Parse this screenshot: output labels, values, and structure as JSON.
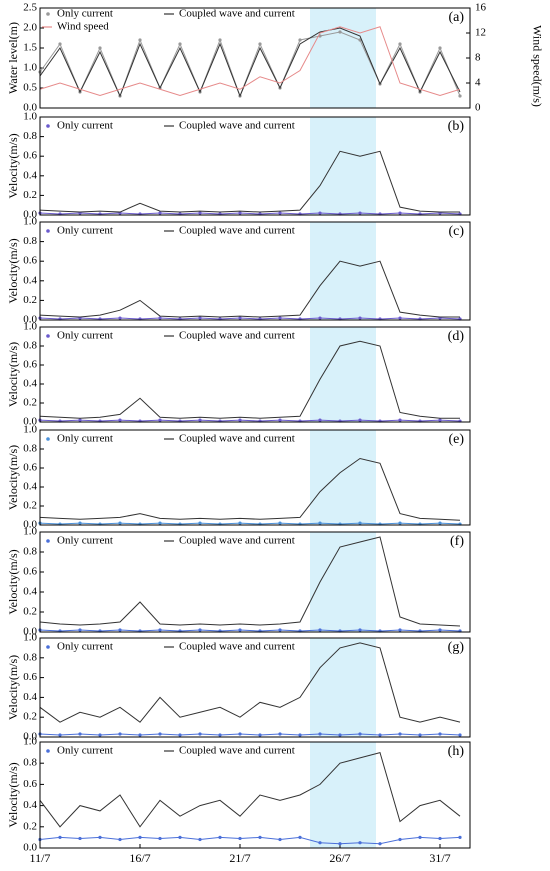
{
  "chart_data": [
    {
      "type": "line",
      "label": "(a)",
      "ylabel": "Water level(m)",
      "y2label": "Wind speed(m/s)",
      "x": [
        11,
        12,
        13,
        14,
        15,
        16,
        17,
        18,
        19,
        20,
        21,
        22,
        23,
        24,
        25,
        26,
        27,
        28,
        29,
        30,
        31,
        32
      ],
      "xlim": [
        11,
        32.5
      ],
      "ylim": [
        0,
        2.5
      ],
      "yticks": [
        {
          "value": 0,
          "label": "0.0"
        },
        {
          "value": 0.5,
          "label": "0.5"
        },
        {
          "value": 1,
          "label": "1.0"
        },
        {
          "value": 1.5,
          "label": "1.5"
        },
        {
          "value": 2,
          "label": "2.0"
        },
        {
          "value": 2.5,
          "label": "2.5"
        }
      ],
      "y2lim": [
        0,
        16
      ],
      "y2ticks": [
        0,
        4,
        8,
        12,
        16
      ],
      "shade_x": [
        24.5,
        27.8
      ],
      "series": [
        {
          "name": "Only current",
          "color": "#999999",
          "marker": true,
          "values": [
            0.9,
            1.6,
            0.4,
            1.5,
            0.3,
            1.7,
            0.5,
            1.6,
            0.4,
            1.7,
            0.3,
            1.6,
            0.5,
            1.7,
            1.8,
            1.9,
            1.7,
            0.6,
            1.6,
            0.4,
            1.5,
            0.3
          ]
        },
        {
          "name": "Coupled wave and current",
          "color": "#333333",
          "values": [
            0.8,
            1.5,
            0.4,
            1.4,
            0.3,
            1.6,
            0.5,
            1.5,
            0.4,
            1.6,
            0.3,
            1.5,
            0.5,
            1.6,
            1.9,
            2.0,
            1.8,
            0.6,
            1.5,
            0.4,
            1.4,
            0.4
          ]
        },
        {
          "name": "Wind speed",
          "color": "#e68a8a",
          "axis": "y2",
          "values": [
            3,
            4,
            3,
            2,
            3,
            4,
            3,
            2,
            3,
            4,
            3,
            5,
            4,
            6,
            12,
            13,
            12,
            13,
            4,
            3,
            2,
            3
          ]
        }
      ]
    },
    {
      "type": "line",
      "label": "(b)",
      "ylabel": "Velocity(m/s)",
      "x": [
        11,
        12,
        13,
        14,
        15,
        16,
        17,
        18,
        19,
        20,
        21,
        22,
        23,
        24,
        25,
        26,
        27,
        28,
        29,
        30,
        31,
        32
      ],
      "xlim": [
        11,
        32.5
      ],
      "ylim": [
        0,
        1
      ],
      "yticks": [
        {
          "value": 0,
          "label": "0.0"
        },
        {
          "value": 0.2,
          "label": "0.2"
        },
        {
          "value": 0.4,
          "label": "0.4"
        },
        {
          "value": 0.6,
          "label": "0.6"
        },
        {
          "value": 0.8,
          "label": "0.8"
        },
        {
          "value": 1,
          "label": "1.0"
        }
      ],
      "shade_x": [
        24.5,
        27.8
      ],
      "series": [
        {
          "name": "Only current",
          "color": "#6a5acd",
          "marker": true,
          "values": [
            0.02,
            0.01,
            0.02,
            0.01,
            0.02,
            0.01,
            0.02,
            0.01,
            0.02,
            0.01,
            0.02,
            0.01,
            0.02,
            0.01,
            0.02,
            0.01,
            0.02,
            0.01,
            0.02,
            0.01,
            0.02,
            0.01
          ]
        },
        {
          "name": "Coupled wave and current",
          "color": "#333333",
          "values": [
            0.05,
            0.04,
            0.03,
            0.04,
            0.03,
            0.12,
            0.04,
            0.03,
            0.04,
            0.03,
            0.04,
            0.03,
            0.04,
            0.05,
            0.3,
            0.65,
            0.6,
            0.65,
            0.08,
            0.04,
            0.03,
            0.03
          ]
        }
      ]
    },
    {
      "type": "line",
      "label": "(c)",
      "ylabel": "Velocity(m/s)",
      "x": [
        11,
        12,
        13,
        14,
        15,
        16,
        17,
        18,
        19,
        20,
        21,
        22,
        23,
        24,
        25,
        26,
        27,
        28,
        29,
        30,
        31,
        32
      ],
      "xlim": [
        11,
        32.5
      ],
      "ylim": [
        0,
        1
      ],
      "yticks": [
        {
          "value": 0,
          "label": "0.0"
        },
        {
          "value": 0.2,
          "label": "0.2"
        },
        {
          "value": 0.4,
          "label": "0.4"
        },
        {
          "value": 0.6,
          "label": "0.6"
        },
        {
          "value": 0.8,
          "label": "0.8"
        },
        {
          "value": 1,
          "label": "1.0"
        }
      ],
      "shade_x": [
        24.5,
        27.8
      ],
      "series": [
        {
          "name": "Only current",
          "color": "#6a5acd",
          "marker": true,
          "values": [
            0.02,
            0.01,
            0.02,
            0.01,
            0.02,
            0.01,
            0.02,
            0.01,
            0.02,
            0.01,
            0.02,
            0.01,
            0.02,
            0.01,
            0.02,
            0.01,
            0.02,
            0.01,
            0.02,
            0.01,
            0.02,
            0.01
          ]
        },
        {
          "name": "Coupled wave and current",
          "color": "#333333",
          "values": [
            0.05,
            0.04,
            0.03,
            0.05,
            0.1,
            0.2,
            0.04,
            0.03,
            0.04,
            0.03,
            0.04,
            0.03,
            0.04,
            0.05,
            0.35,
            0.6,
            0.55,
            0.6,
            0.08,
            0.05,
            0.03,
            0.03
          ]
        }
      ]
    },
    {
      "type": "line",
      "label": "(d)",
      "ylabel": "Velocity(m/s)",
      "x": [
        11,
        12,
        13,
        14,
        15,
        16,
        17,
        18,
        19,
        20,
        21,
        22,
        23,
        24,
        25,
        26,
        27,
        28,
        29,
        30,
        31,
        32
      ],
      "xlim": [
        11,
        32.5
      ],
      "ylim": [
        0,
        1
      ],
      "yticks": [
        {
          "value": 0,
          "label": "0.0"
        },
        {
          "value": 0.2,
          "label": "0.2"
        },
        {
          "value": 0.4,
          "label": "0.4"
        },
        {
          "value": 0.6,
          "label": "0.6"
        },
        {
          "value": 0.8,
          "label": "0.8"
        },
        {
          "value": 1,
          "label": "1.0"
        }
      ],
      "shade_x": [
        24.5,
        27.8
      ],
      "series": [
        {
          "name": "Only current",
          "color": "#6a5acd",
          "marker": true,
          "values": [
            0.02,
            0.01,
            0.02,
            0.01,
            0.02,
            0.01,
            0.02,
            0.01,
            0.02,
            0.01,
            0.02,
            0.01,
            0.02,
            0.01,
            0.02,
            0.01,
            0.02,
            0.01,
            0.02,
            0.01,
            0.02,
            0.01
          ]
        },
        {
          "name": "Coupled wave and current",
          "color": "#333333",
          "values": [
            0.06,
            0.05,
            0.04,
            0.05,
            0.08,
            0.25,
            0.05,
            0.04,
            0.05,
            0.04,
            0.05,
            0.04,
            0.05,
            0.06,
            0.45,
            0.8,
            0.85,
            0.8,
            0.1,
            0.06,
            0.04,
            0.04
          ]
        }
      ]
    },
    {
      "type": "line",
      "label": "(e)",
      "ylabel": "Velocity(m/s)",
      "x": [
        11,
        12,
        13,
        14,
        15,
        16,
        17,
        18,
        19,
        20,
        21,
        22,
        23,
        24,
        25,
        26,
        27,
        28,
        29,
        30,
        31,
        32
      ],
      "xlim": [
        11,
        32.5
      ],
      "ylim": [
        0,
        1
      ],
      "yticks": [
        {
          "value": 0,
          "label": "0.0"
        },
        {
          "value": 0.2,
          "label": "0.2"
        },
        {
          "value": 0.4,
          "label": "0.4"
        },
        {
          "value": 0.6,
          "label": "0.6"
        },
        {
          "value": 0.8,
          "label": "0.8"
        },
        {
          "value": 1,
          "label": "1.0"
        }
      ],
      "shade_x": [
        24.5,
        27.8
      ],
      "series": [
        {
          "name": "Only current",
          "color": "#4a90d9",
          "marker": true,
          "values": [
            0.02,
            0.01,
            0.02,
            0.01,
            0.02,
            0.01,
            0.02,
            0.01,
            0.02,
            0.01,
            0.02,
            0.01,
            0.02,
            0.01,
            0.02,
            0.01,
            0.02,
            0.01,
            0.02,
            0.01,
            0.02,
            0.01
          ]
        },
        {
          "name": "Coupled wave and current",
          "color": "#333333",
          "values": [
            0.08,
            0.07,
            0.06,
            0.07,
            0.08,
            0.12,
            0.07,
            0.06,
            0.07,
            0.06,
            0.07,
            0.06,
            0.07,
            0.08,
            0.35,
            0.55,
            0.7,
            0.65,
            0.12,
            0.07,
            0.06,
            0.05
          ]
        }
      ]
    },
    {
      "type": "line",
      "label": "(f)",
      "ylabel": "Velocity(m/s)",
      "x": [
        11,
        12,
        13,
        14,
        15,
        16,
        17,
        18,
        19,
        20,
        21,
        22,
        23,
        24,
        25,
        26,
        27,
        28,
        29,
        30,
        31,
        32
      ],
      "xlim": [
        11,
        32.5
      ],
      "ylim": [
        0,
        1
      ],
      "yticks": [
        {
          "value": 0,
          "label": "0.0"
        },
        {
          "value": 0.2,
          "label": "0.2"
        },
        {
          "value": 0.4,
          "label": "0.4"
        },
        {
          "value": 0.6,
          "label": "0.6"
        },
        {
          "value": 0.8,
          "label": "0.8"
        },
        {
          "value": 1,
          "label": "1.0"
        }
      ],
      "shade_x": [
        24.5,
        27.8
      ],
      "series": [
        {
          "name": "Only current",
          "color": "#4a6fd9",
          "marker": true,
          "values": [
            0.02,
            0.01,
            0.02,
            0.01,
            0.02,
            0.01,
            0.02,
            0.01,
            0.02,
            0.01,
            0.02,
            0.01,
            0.02,
            0.01,
            0.02,
            0.01,
            0.02,
            0.01,
            0.02,
            0.01,
            0.02,
            0.01
          ]
        },
        {
          "name": "Coupled wave and current",
          "color": "#333333",
          "values": [
            0.1,
            0.08,
            0.07,
            0.08,
            0.1,
            0.3,
            0.08,
            0.07,
            0.08,
            0.07,
            0.08,
            0.07,
            0.08,
            0.1,
            0.5,
            0.85,
            0.9,
            0.95,
            0.15,
            0.08,
            0.07,
            0.06
          ]
        }
      ]
    },
    {
      "type": "line",
      "label": "(g)",
      "ylabel": "Velocity(m/s)",
      "x": [
        11,
        12,
        13,
        14,
        15,
        16,
        17,
        18,
        19,
        20,
        21,
        22,
        23,
        24,
        25,
        26,
        27,
        28,
        29,
        30,
        31,
        32
      ],
      "xlim": [
        11,
        32.5
      ],
      "ylim": [
        0,
        1
      ],
      "yticks": [
        {
          "value": 0,
          "label": "0.0"
        },
        {
          "value": 0.2,
          "label": "0.2"
        },
        {
          "value": 0.4,
          "label": "0.4"
        },
        {
          "value": 0.6,
          "label": "0.6"
        },
        {
          "value": 0.8,
          "label": "0.8"
        },
        {
          "value": 1,
          "label": "1.0"
        }
      ],
      "shade_x": [
        24.5,
        27.8
      ],
      "series": [
        {
          "name": "Only current",
          "color": "#4a6fd9",
          "marker": true,
          "values": [
            0.03,
            0.02,
            0.03,
            0.02,
            0.03,
            0.02,
            0.03,
            0.02,
            0.03,
            0.02,
            0.03,
            0.02,
            0.03,
            0.02,
            0.03,
            0.02,
            0.03,
            0.02,
            0.03,
            0.02,
            0.03,
            0.02
          ]
        },
        {
          "name": "Coupled wave and current",
          "color": "#333333",
          "values": [
            0.3,
            0.15,
            0.25,
            0.2,
            0.3,
            0.15,
            0.4,
            0.2,
            0.25,
            0.3,
            0.2,
            0.35,
            0.3,
            0.4,
            0.7,
            0.9,
            0.95,
            0.9,
            0.2,
            0.15,
            0.2,
            0.15
          ]
        }
      ]
    },
    {
      "type": "line",
      "label": "(h)",
      "ylabel": "Velocity(m/s)",
      "x": [
        11,
        12,
        13,
        14,
        15,
        16,
        17,
        18,
        19,
        20,
        21,
        22,
        23,
        24,
        25,
        26,
        27,
        28,
        29,
        30,
        31,
        32
      ],
      "xlim": [
        11,
        32.5
      ],
      "ylim": [
        0,
        1
      ],
      "yticks": [
        {
          "value": 0,
          "label": "0.0"
        },
        {
          "value": 0.2,
          "label": "0.2"
        },
        {
          "value": 0.4,
          "label": "0.4"
        },
        {
          "value": 0.6,
          "label": "0.6"
        },
        {
          "value": 0.8,
          "label": "0.8"
        },
        {
          "value": 1,
          "label": "1.0"
        }
      ],
      "shade_x": [
        24.5,
        27.8
      ],
      "xticks": [
        {
          "value": 11,
          "label": "11/7"
        },
        {
          "value": 16,
          "label": "16/7"
        },
        {
          "value": 21,
          "label": "21/7"
        },
        {
          "value": 26,
          "label": "26/7"
        },
        {
          "value": 31,
          "label": "31/7"
        }
      ],
      "series": [
        {
          "name": "Only current",
          "color": "#4a6fd9",
          "marker": true,
          "values": [
            0.08,
            0.1,
            0.09,
            0.1,
            0.08,
            0.1,
            0.09,
            0.1,
            0.08,
            0.1,
            0.09,
            0.1,
            0.08,
            0.1,
            0.05,
            0.04,
            0.05,
            0.04,
            0.08,
            0.1,
            0.09,
            0.1
          ]
        },
        {
          "name": "Coupled wave and current",
          "color": "#333333",
          "values": [
            0.45,
            0.2,
            0.4,
            0.35,
            0.5,
            0.2,
            0.45,
            0.3,
            0.4,
            0.45,
            0.3,
            0.5,
            0.45,
            0.5,
            0.6,
            0.8,
            0.85,
            0.9,
            0.25,
            0.4,
            0.45,
            0.3
          ]
        }
      ]
    }
  ]
}
